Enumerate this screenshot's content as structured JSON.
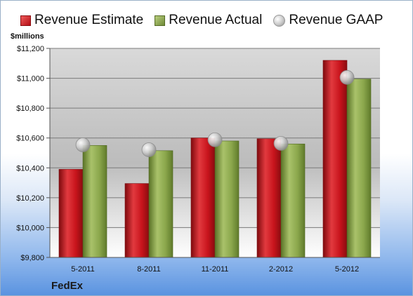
{
  "chart_data": {
    "type": "bar",
    "ylabel": "$millions",
    "ylim": [
      9800,
      11200
    ],
    "yticks": [
      9800,
      10000,
      10200,
      10400,
      10600,
      10800,
      11000,
      11200
    ],
    "ytick_labels": [
      "$9,800",
      "$10,000",
      "$10,200",
      "$10,400",
      "$10,600",
      "$10,800",
      "$11,000",
      "$11,200"
    ],
    "categories": [
      "5-2011",
      "8-2011",
      "11-2011",
      "2-2012",
      "5-2012"
    ],
    "series": [
      {
        "name": "Revenue Estimate",
        "kind": "bar",
        "color": "#c8141c",
        "values": [
          10390,
          10295,
          10600,
          10595,
          11120
        ]
      },
      {
        "name": "Revenue Actual",
        "kind": "bar",
        "color": "#8aa64b",
        "values": [
          10550,
          10515,
          10580,
          10560,
          10995
        ]
      },
      {
        "name": "Revenue GAAP",
        "kind": "marker",
        "color": "#bdbdbd",
        "values": [
          10554,
          10521,
          10588,
          10564,
          11006
        ]
      }
    ],
    "grid": true,
    "legend": "top",
    "footer": "FedEx"
  }
}
